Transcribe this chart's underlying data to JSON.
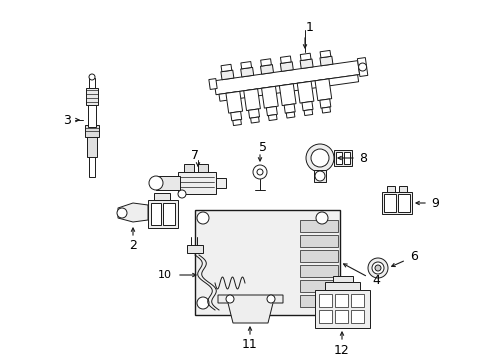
{
  "background_color": "#ffffff",
  "line_color": "#1a1a1a",
  "label_color": "#000000",
  "figsize": [
    4.89,
    3.6
  ],
  "dpi": 100,
  "lw_thick": 1.4,
  "lw_med": 1.0,
  "lw_thin": 0.7,
  "lw_hair": 0.5
}
